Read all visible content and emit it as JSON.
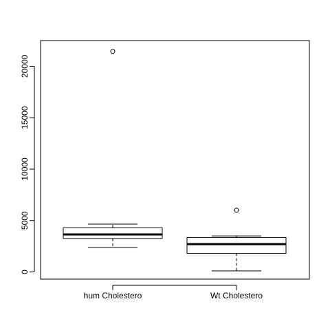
{
  "chart_data": {
    "type": "boxplot",
    "title": "",
    "xlabel": "",
    "ylabel": "",
    "ylim": [
      -700,
      22500
    ],
    "yticks": [
      0,
      5000,
      10000,
      15000,
      20000
    ],
    "ytick_labels": [
      "0",
      "5000",
      "10000",
      "15000",
      "20000"
    ],
    "grid": false,
    "legend": "none",
    "categories": [
      "hum Cholestero",
      "Wt Cholestero"
    ],
    "boxes": [
      {
        "category": "hum Cholestero",
        "whisker_low": 2400,
        "q1": 3250,
        "median": 3650,
        "q3": 4300,
        "whisker_high": 4650,
        "outliers": [
          21450
        ]
      },
      {
        "category": "Wt Cholestero",
        "whisker_low": 100,
        "q1": 1800,
        "median": 2700,
        "q3": 3350,
        "whisker_high": 3500,
        "outliers": [
          6000
        ]
      }
    ],
    "colors": {
      "stroke": "#000000",
      "background": "#ffffff"
    }
  }
}
